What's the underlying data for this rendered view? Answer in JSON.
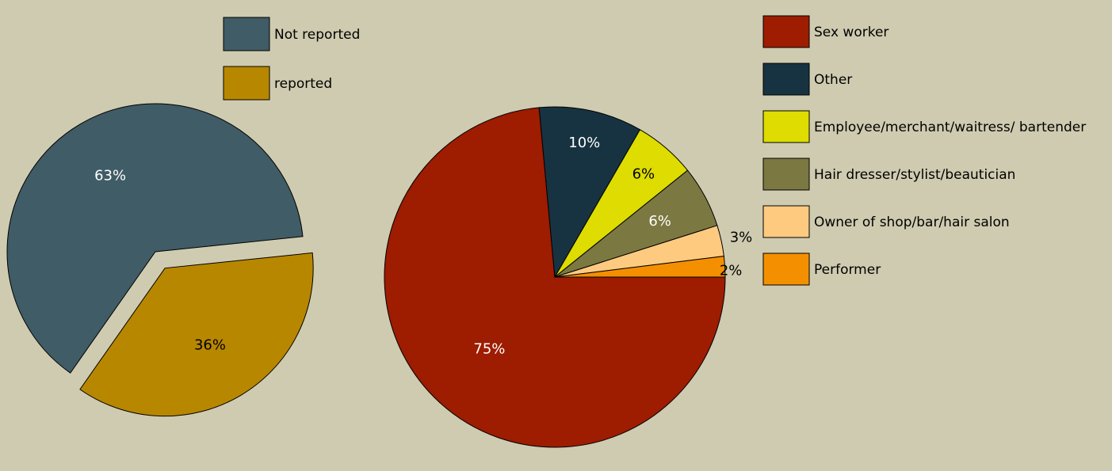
{
  "chart_data": [
    {
      "type": "pie",
      "title": "",
      "legend_position": "top",
      "categories": [
        "Not reported",
        "reported"
      ],
      "values": [
        63,
        36
      ],
      "labels": [
        "63%",
        "36%"
      ],
      "colors": [
        "#405c66",
        "#b88700"
      ],
      "label_colors": [
        "#ffffff",
        "#000000"
      ],
      "exploded": [
        false,
        true
      ]
    },
    {
      "type": "pie",
      "title": "",
      "legend_position": "right",
      "categories": [
        "Sex worker",
        "Other",
        "Employee/merchant/waitress/ bartender",
        "Hair dresser/stylist/beautician",
        "Owner of shop/bar/hair salon",
        "Performer"
      ],
      "values": [
        75,
        10,
        6,
        6,
        3,
        2
      ],
      "labels": [
        "75%",
        "10%",
        "6%",
        "6%",
        "3%",
        "2%"
      ],
      "colors": [
        "#9e1c00",
        "#173341",
        "#dedc00",
        "#7b7841",
        "#fdca80",
        "#f49000"
      ],
      "label_colors": [
        "#ffffff",
        "#ffffff",
        "#000000",
        "#ffffff",
        "#000000",
        "#000000"
      ]
    }
  ]
}
